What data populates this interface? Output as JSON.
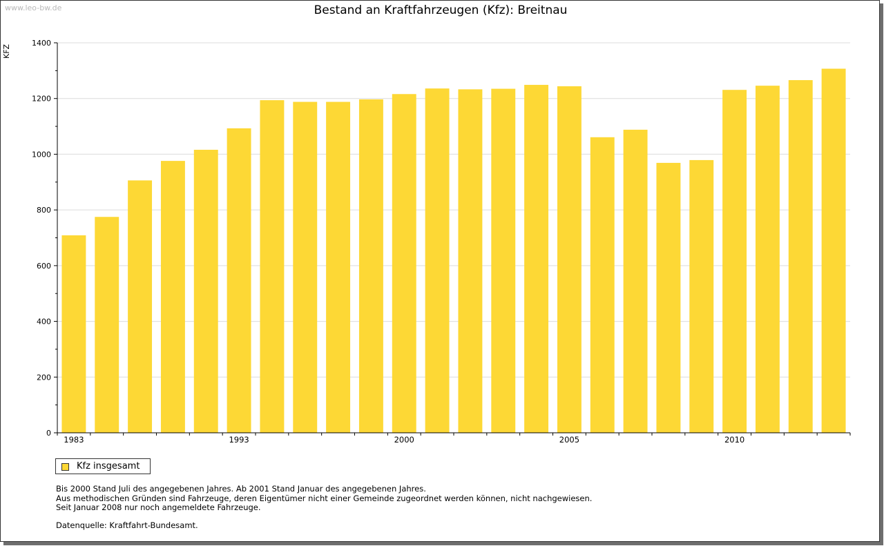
{
  "watermark": "www.leo-bw.de",
  "chart_data": {
    "type": "bar",
    "title": "Bestand an Kraftfahrzeugen (Kfz): Breitnau",
    "ylabel": "KFZ",
    "ylim": [
      0,
      1400
    ],
    "yticks": [
      0,
      200,
      400,
      600,
      800,
      1000,
      1200,
      1400
    ],
    "grid": true,
    "legend_position": "bottom-left",
    "bar_color": "#fdd835",
    "x_tick_labels": [
      "1983",
      "1993",
      "2000",
      "2005",
      "2010"
    ],
    "x_tick_label_indices": [
      0,
      5,
      10,
      15,
      20
    ],
    "series": [
      {
        "name": "Kfz insgesamt",
        "values": [
          709,
          775,
          906,
          976,
          1016,
          1093,
          1194,
          1188,
          1188,
          1197,
          1216,
          1236,
          1233,
          1235,
          1249,
          1244,
          1061,
          1088,
          969,
          979,
          1231,
          1246,
          1266,
          1307
        ]
      }
    ]
  },
  "notes": [
    "Bis 2000 Stand Juli des angegebenen Jahres. Ab 2001 Stand Januar des angegebenen Jahres.",
    "Aus methodischen Gründen sind Fahrzeuge, deren Eigentümer nicht einer Gemeinde zugeordnet werden können, nicht nachgewiesen.",
    "Seit Januar 2008 nur noch angemeldete Fahrzeuge."
  ],
  "source": "Datenquelle: Kraftfahrt-Bundesamt."
}
